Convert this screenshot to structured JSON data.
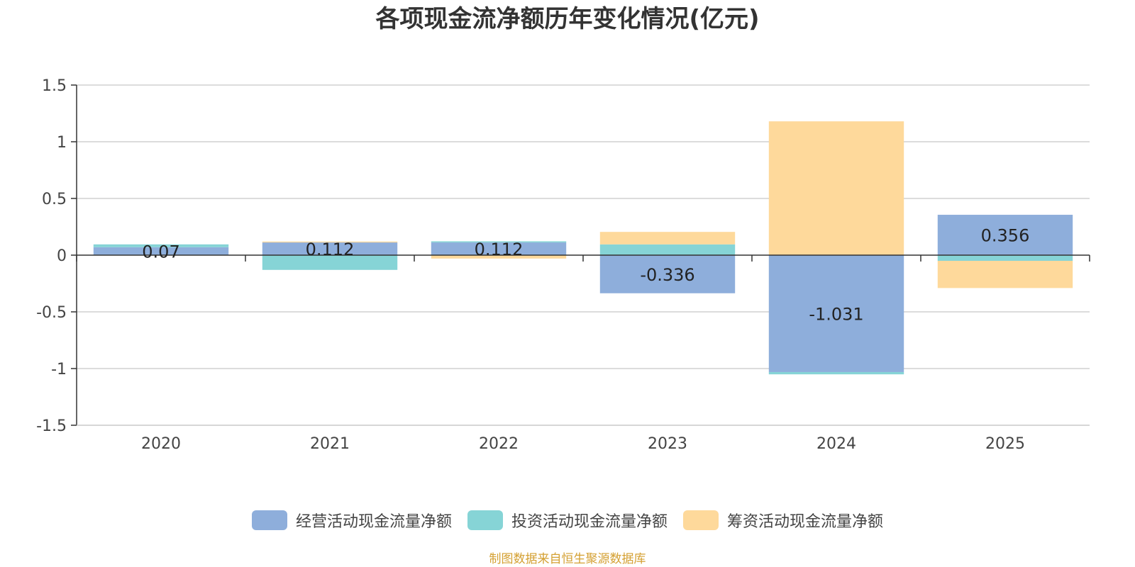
{
  "chart_data": {
    "type": "bar",
    "stacked": true,
    "title": "各项现金流净额历年变化情况(亿元)",
    "categories": [
      "2020",
      "2021",
      "2022",
      "2023",
      "2024",
      "2025"
    ],
    "ylim": [
      -1.5,
      1.5
    ],
    "yticks": [
      1.5,
      1,
      0.5,
      0,
      -0.5,
      -1,
      -1.5
    ],
    "ytick_labels": [
      "1.5",
      "1",
      "0.5",
      "0",
      "-0.5",
      "-1",
      "-1.5"
    ],
    "grid": true,
    "legend_position": "bottom",
    "series": [
      {
        "name": "经营活动现金流量净额",
        "color": "#8eaedb",
        "values": [
          0.07,
          0.112,
          0.112,
          -0.336,
          -1.031,
          0.356
        ],
        "data_labels": [
          "0.07",
          "0.112",
          "0.112",
          "-0.336",
          "-1.031",
          "0.356"
        ]
      },
      {
        "name": "投资活动现金流量净额",
        "color": "#86d4d6",
        "values": [
          0.025,
          -0.13,
          0.01,
          0.095,
          -0.02,
          -0.05
        ]
      },
      {
        "name": "筹资活动现金流量净额",
        "color": "#fed99b",
        "values": [
          0.0,
          0.008,
          -0.03,
          0.11,
          1.18,
          -0.24
        ]
      }
    ]
  },
  "source_note": "制图数据来自恒生聚源数据库"
}
